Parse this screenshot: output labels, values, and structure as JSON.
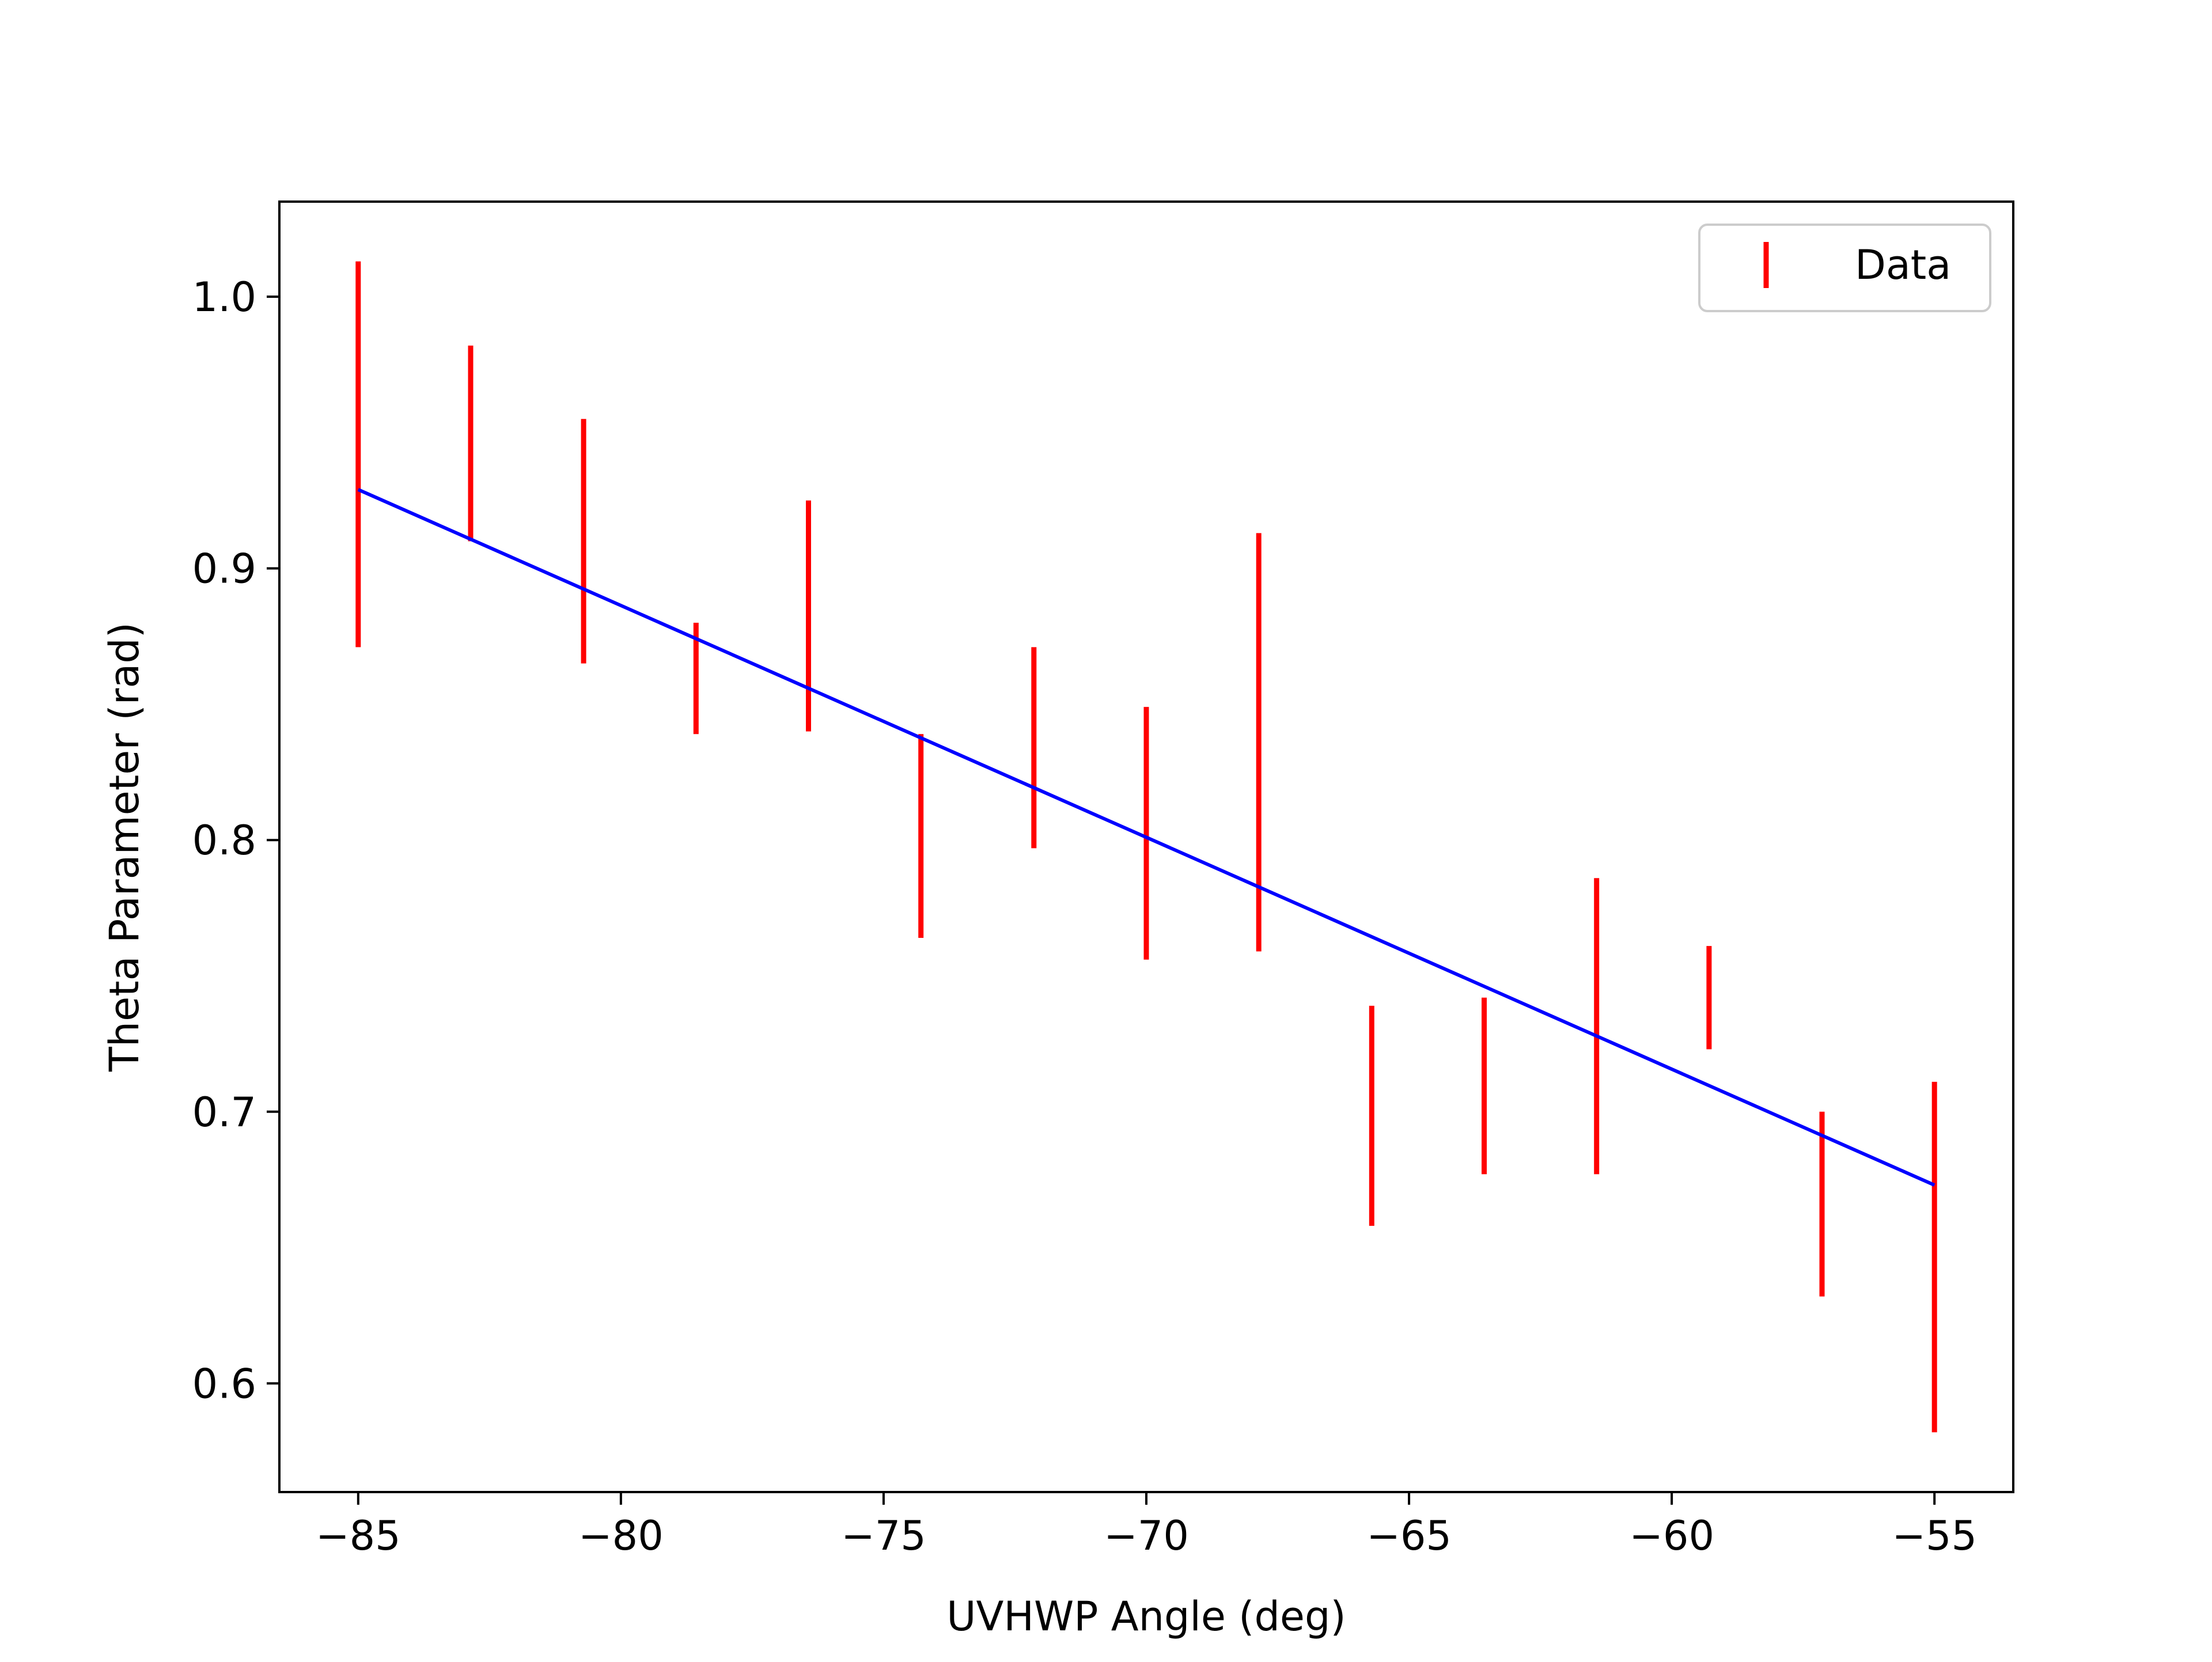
{
  "chart_data": {
    "type": "scatter",
    "title": "",
    "xlabel": "UVHWP Angle (deg)",
    "ylabel": "Theta Parameter (rad)",
    "xlim": [
      -86.5,
      -53.5
    ],
    "ylim": [
      0.56,
      1.035
    ],
    "grid": false,
    "legend": {
      "position": "top-right",
      "entries": [
        "Data"
      ]
    },
    "x_ticks": [
      {
        "value": -85,
        "label": "−85"
      },
      {
        "value": -80,
        "label": "−80"
      },
      {
        "value": -75,
        "label": "−75"
      },
      {
        "value": -70,
        "label": "−70"
      },
      {
        "value": -65,
        "label": "−65"
      },
      {
        "value": -60,
        "label": "−60"
      },
      {
        "value": -55,
        "label": "−55"
      }
    ],
    "y_ticks": [
      {
        "value": 0.6,
        "label": "0.6"
      },
      {
        "value": 0.7,
        "label": "0.7"
      },
      {
        "value": 0.8,
        "label": "0.8"
      },
      {
        "value": 0.9,
        "label": "0.9"
      },
      {
        "value": 1.0,
        "label": "1.0"
      }
    ],
    "series": [
      {
        "name": "Data",
        "kind": "errorbar",
        "color": "#ff0000",
        "points": [
          {
            "x": -85.0,
            "low": 0.871,
            "high": 1.013
          },
          {
            "x": -82.86,
            "low": 0.91,
            "high": 0.982
          },
          {
            "x": -80.71,
            "low": 0.865,
            "high": 0.955
          },
          {
            "x": -78.57,
            "low": 0.839,
            "high": 0.88
          },
          {
            "x": -76.43,
            "low": 0.84,
            "high": 0.925
          },
          {
            "x": -74.29,
            "low": 0.764,
            "high": 0.839
          },
          {
            "x": -72.14,
            "low": 0.797,
            "high": 0.871
          },
          {
            "x": -70.0,
            "low": 0.756,
            "high": 0.849
          },
          {
            "x": -67.86,
            "low": 0.759,
            "high": 0.913
          },
          {
            "x": -65.71,
            "low": 0.658,
            "high": 0.739
          },
          {
            "x": -63.57,
            "low": 0.677,
            "high": 0.742
          },
          {
            "x": -61.43,
            "low": 0.677,
            "high": 0.786
          },
          {
            "x": -59.29,
            "low": 0.723,
            "high": 0.761
          },
          {
            "x": -57.14,
            "low": 0.632,
            "high": 0.7
          },
          {
            "x": -55.0,
            "low": 0.582,
            "high": 0.711
          }
        ]
      },
      {
        "kind": "line",
        "color": "#0000ff",
        "x": [
          -85.0,
          -55.0
        ],
        "y": [
          0.929,
          0.673
        ]
      }
    ]
  }
}
